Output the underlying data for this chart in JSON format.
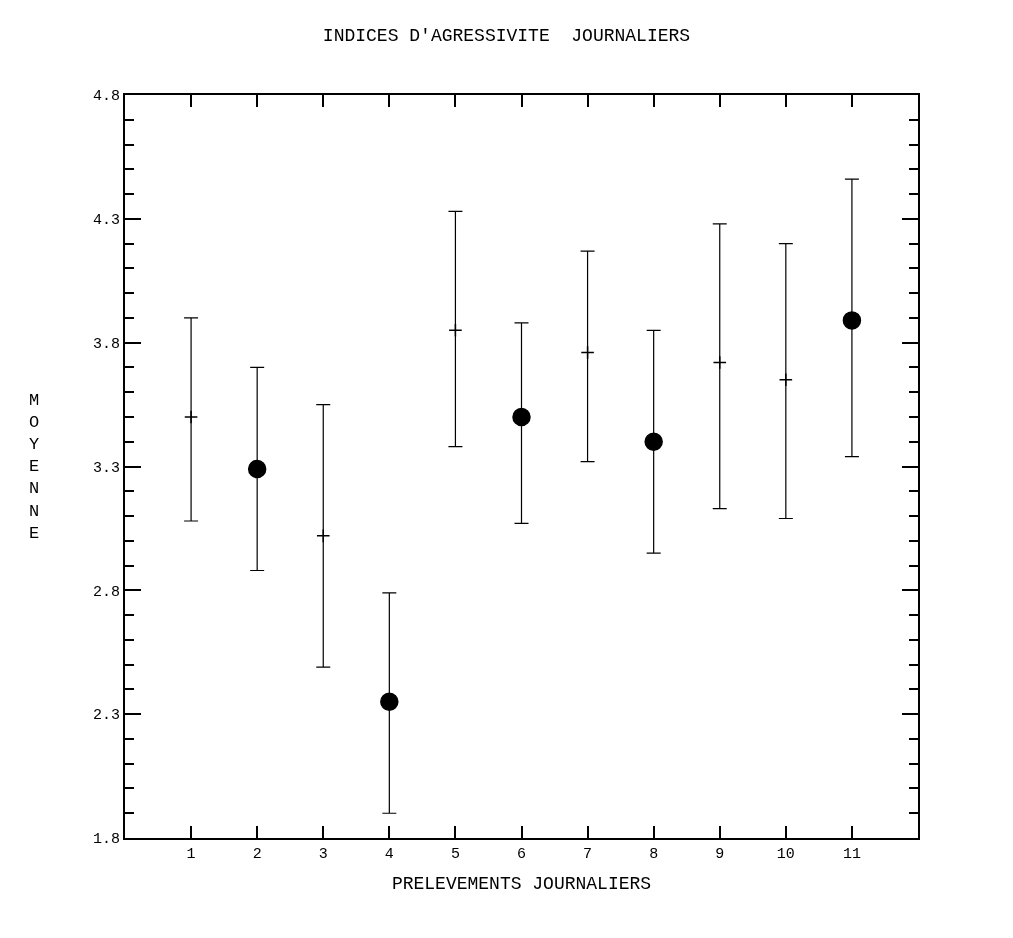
{
  "chart_data": {
    "type": "scatter",
    "title": "INDICES D'AGRESSIVITE  JOURNALIERS",
    "xlabel": "PRELEVEMENTS JOURNALIERS",
    "ylabel": "MOYENNE",
    "x": [
      1,
      2,
      3,
      4,
      5,
      6,
      7,
      8,
      9,
      10,
      11
    ],
    "series": [
      {
        "color": "#000000",
        "marker": "circle",
        "values": [
          null,
          3.29,
          null,
          2.35,
          null,
          3.5,
          null,
          3.4,
          null,
          null,
          3.89
        ],
        "errors": [
          null,
          [
            2.88,
            3.7
          ],
          null,
          [
            1.9,
            2.79
          ],
          null,
          [
            3.07,
            3.88
          ],
          null,
          [
            2.95,
            3.85
          ],
          null,
          null,
          [
            3.34,
            4.46
          ]
        ]
      },
      {
        "color": "#000000",
        "marker": "cross",
        "values": [
          3.5,
          null,
          3.02,
          null,
          3.85,
          null,
          3.76,
          null,
          3.72,
          3.65,
          null
        ],
        "errors": [
          [
            3.08,
            3.9
          ],
          null,
          [
            2.49,
            3.55
          ],
          null,
          [
            3.38,
            4.33
          ],
          null,
          [
            3.32,
            4.17
          ],
          null,
          [
            3.13,
            4.28
          ],
          [
            3.09,
            4.2
          ],
          null
        ]
      }
    ],
    "xlim": [
      0,
      12
    ],
    "xticks": [
      1,
      2,
      3,
      4,
      5,
      6,
      7,
      8,
      9,
      10,
      11
    ],
    "ylim": [
      1.8,
      4.8
    ],
    "yticks": [
      1.8,
      2.3,
      2.8,
      3.3,
      3.8,
      4.3,
      4.8
    ]
  }
}
